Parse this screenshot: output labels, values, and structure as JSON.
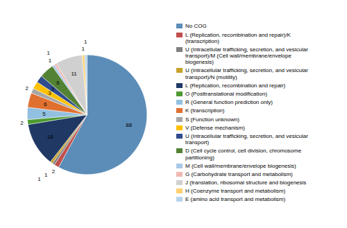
{
  "chart_data": {
    "type": "pie",
    "categories": [
      "No COG",
      "L (Replication, recombination and repair)/K\n(transcription)",
      "U (Intracellular trafficking, secretion, and vesicular\ntransport)/M (Cell wall/membrane/envelope\nbiogenesis)",
      "U (Intracellular trafficking, secretion, and vesicular\ntransport)/N (motility)",
      "L (Replication, recombination and repair)",
      "O (Posttranslational modification)",
      "R (General function prediction only)",
      "K (transcription)",
      "S (Function unknown)",
      "V (Defense mechanism)",
      "U (Intracellular trafficking, secretion, and vesicular\ntransport)",
      "D (Cell cycle control, cell division, chromosome\npartitioning)",
      "M (Cell wall/membrane/envelope biogenesis)",
      "G (Carbohydrate transport and metabolism)",
      "J (translation, ribosomal structure and biogenesis",
      "H (Coenzyme transport and metabolism)",
      "E (amino acid transport and metabolism)"
    ],
    "values": [
      88,
      2,
      1,
      1,
      18,
      2,
      5,
      6,
      2,
      3,
      3,
      6,
      1,
      1,
      11,
      1,
      1
    ],
    "colors": [
      "#5b8db8",
      "#c0504d",
      "#808080",
      "#c8a22a",
      "#1f3864",
      "#4e9a32",
      "#92c0e0",
      "#e07030",
      "#a6a6a6",
      "#ffc000",
      "#2f4b8e",
      "#548235",
      "#a9c8e8",
      "#f0b8b0",
      "#d0d0d0",
      "#ffd070",
      "#b8d4ec"
    ],
    "data_labels": true,
    "legend": "right"
  }
}
